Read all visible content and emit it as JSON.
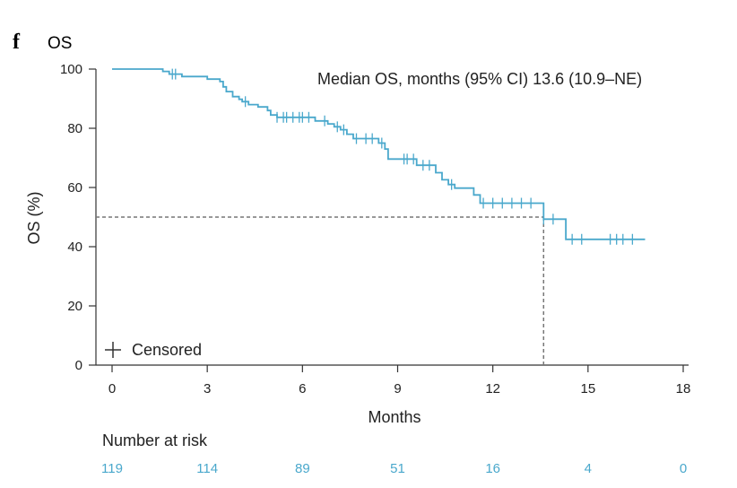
{
  "panel": {
    "letter": "f",
    "title": "OS"
  },
  "chart_data": {
    "type": "line",
    "title": "OS",
    "xlabel": "Months",
    "ylabel": "OS (%)",
    "xlim": [
      0,
      18
    ],
    "ylim": [
      0,
      100
    ],
    "xticks": [
      0,
      3,
      6,
      9,
      12,
      15,
      18
    ],
    "yticks": [
      0,
      20,
      40,
      60,
      80,
      100
    ],
    "series": [
      {
        "name": "OS",
        "color": "#4aa8cc",
        "step_points": [
          [
            0,
            100
          ],
          [
            1.6,
            100
          ],
          [
            1.6,
            99.2
          ],
          [
            1.8,
            99.2
          ],
          [
            1.8,
            98.3
          ],
          [
            2.2,
            98.3
          ],
          [
            2.2,
            97.5
          ],
          [
            3.0,
            97.5
          ],
          [
            3.0,
            96.6
          ],
          [
            3.4,
            96.6
          ],
          [
            3.4,
            95.8
          ],
          [
            3.5,
            95.8
          ],
          [
            3.5,
            94.0
          ],
          [
            3.6,
            94.0
          ],
          [
            3.6,
            92.4
          ],
          [
            3.8,
            92.4
          ],
          [
            3.8,
            90.7
          ],
          [
            4.0,
            90.7
          ],
          [
            4.0,
            89.8
          ],
          [
            4.1,
            89.8
          ],
          [
            4.1,
            89.0
          ],
          [
            4.3,
            89.0
          ],
          [
            4.3,
            88.0
          ],
          [
            4.6,
            88.0
          ],
          [
            4.6,
            87.2
          ],
          [
            4.9,
            87.2
          ],
          [
            4.9,
            86.0
          ],
          [
            5.0,
            86.0
          ],
          [
            5.0,
            84.5
          ],
          [
            5.2,
            84.5
          ],
          [
            5.2,
            83.7
          ],
          [
            6.4,
            83.7
          ],
          [
            6.4,
            82.5
          ],
          [
            6.8,
            82.5
          ],
          [
            6.8,
            81.5
          ],
          [
            7.0,
            81.5
          ],
          [
            7.0,
            80.5
          ],
          [
            7.2,
            80.5
          ],
          [
            7.2,
            79.5
          ],
          [
            7.4,
            79.5
          ],
          [
            7.4,
            78.0
          ],
          [
            7.6,
            78.0
          ],
          [
            7.6,
            76.5
          ],
          [
            8.4,
            76.5
          ],
          [
            8.4,
            75.0
          ],
          [
            8.6,
            75.0
          ],
          [
            8.6,
            73.0
          ],
          [
            8.7,
            73.0
          ],
          [
            8.7,
            69.6
          ],
          [
            9.6,
            69.6
          ],
          [
            9.6,
            67.5
          ],
          [
            10.2,
            67.5
          ],
          [
            10.2,
            65.0
          ],
          [
            10.4,
            65.0
          ],
          [
            10.4,
            62.6
          ],
          [
            10.6,
            62.6
          ],
          [
            10.6,
            61.0
          ],
          [
            10.8,
            61.0
          ],
          [
            10.8,
            59.8
          ],
          [
            11.4,
            59.8
          ],
          [
            11.4,
            57.5
          ],
          [
            11.6,
            57.5
          ],
          [
            11.6,
            54.7
          ],
          [
            13.6,
            54.7
          ],
          [
            13.6,
            49.3
          ],
          [
            14.3,
            49.3
          ],
          [
            14.3,
            42.5
          ],
          [
            16.8,
            42.5
          ]
        ],
        "censored": [
          [
            1.9,
            98.3
          ],
          [
            2.0,
            98.3
          ],
          [
            4.2,
            89.0
          ],
          [
            5.2,
            83.7
          ],
          [
            5.4,
            83.7
          ],
          [
            5.5,
            83.7
          ],
          [
            5.7,
            83.7
          ],
          [
            5.9,
            83.7
          ],
          [
            6.0,
            83.7
          ],
          [
            6.2,
            83.7
          ],
          [
            6.7,
            82.5
          ],
          [
            7.1,
            80.5
          ],
          [
            7.3,
            79.5
          ],
          [
            7.7,
            76.5
          ],
          [
            8.0,
            76.5
          ],
          [
            8.2,
            76.5
          ],
          [
            8.5,
            75.0
          ],
          [
            9.2,
            69.6
          ],
          [
            9.3,
            69.6
          ],
          [
            9.5,
            69.6
          ],
          [
            9.8,
            67.5
          ],
          [
            10.0,
            67.5
          ],
          [
            10.7,
            61.0
          ],
          [
            11.7,
            54.7
          ],
          [
            12.0,
            54.7
          ],
          [
            12.3,
            54.7
          ],
          [
            12.6,
            54.7
          ],
          [
            12.9,
            54.7
          ],
          [
            13.2,
            54.7
          ],
          [
            13.6,
            49.3
          ],
          [
            13.9,
            49.3
          ],
          [
            14.5,
            42.5
          ],
          [
            14.8,
            42.5
          ],
          [
            15.7,
            42.5
          ],
          [
            15.9,
            42.5
          ],
          [
            16.1,
            42.5
          ],
          [
            16.4,
            42.5
          ]
        ]
      }
    ],
    "median_line": {
      "y": 50,
      "x": 13.6
    },
    "annotation": "Median OS, months (95% CI) 13.6 (10.9–NE)",
    "legend": {
      "label": "Censored",
      "marker": "+",
      "placement": "bottom-left"
    }
  },
  "risk_table": {
    "title": "Number at risk",
    "color": "#4aa8cc",
    "timepoints": [
      0,
      3,
      6,
      9,
      12,
      15,
      18
    ],
    "values": [
      "119",
      "114",
      "89",
      "51",
      "16",
      "4",
      "0"
    ]
  }
}
